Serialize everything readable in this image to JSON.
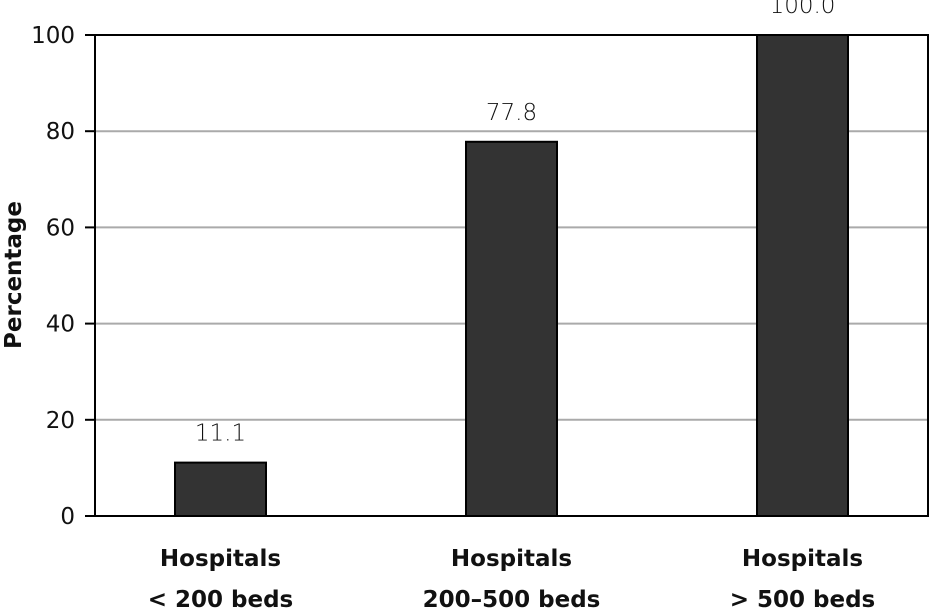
{
  "chart_data": {
    "type": "bar",
    "categories": [
      [
        "Hospitals",
        "< 200 beds"
      ],
      [
        "Hospitals",
        "200–500 beds"
      ],
      [
        "Hospitals",
        "> 500 beds"
      ]
    ],
    "values": [
      11.1,
      77.8,
      100.0
    ],
    "value_labels": [
      "11.1",
      "77.8",
      "100.0"
    ],
    "title": "",
    "xlabel": "",
    "ylabel": "Percentage",
    "ylim": [
      0,
      100
    ],
    "yticks": [
      0,
      20,
      40,
      60,
      80,
      100
    ],
    "grid": true,
    "bar_color": "#333333",
    "grid_color": "#aaaaaa"
  }
}
